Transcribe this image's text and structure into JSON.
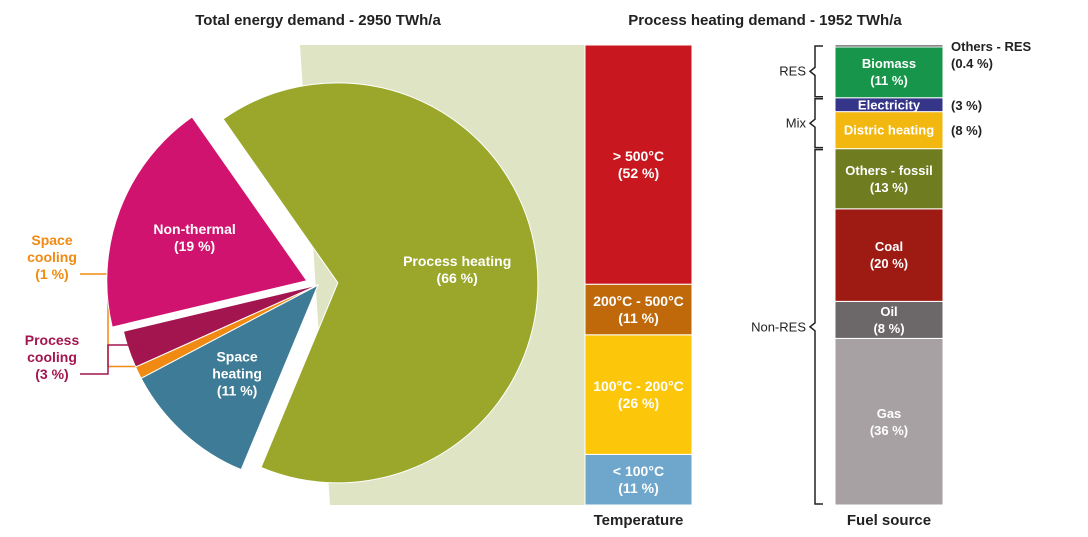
{
  "chart_data": [
    {
      "type": "pie",
      "title": "Total energy demand - 2950 TWh/a",
      "categories": [
        "Process heating",
        "Space heating",
        "Space cooling",
        "Process cooling",
        "Non-thermal"
      ],
      "values": [
        66,
        11,
        1,
        3,
        19
      ],
      "value_labels": [
        "(66 %)",
        "(11 %)",
        "(1 %)",
        "(3 %)",
        "(19 %)"
      ],
      "colors": [
        "#9aa72b",
        "#3e7b97",
        "#f08a12",
        "#a3154f",
        "#d0136f"
      ]
    },
    {
      "type": "stacked-bar",
      "title": "Process heating demand - 1952 TWh/a",
      "xlabel": "Temperature",
      "categories": [
        "< 100°C",
        "100°C - 200°C",
        "200°C - 500°C",
        "> 500°C"
      ],
      "values": [
        11,
        26,
        11,
        52
      ],
      "value_labels": [
        "(11 %)",
        "(26 %)",
        "(11 %)",
        "(52 %)"
      ],
      "colors": [
        "#6fa6cb",
        "#fcc60a",
        "#c0690a",
        "#c8171e"
      ]
    },
    {
      "type": "grouped-stack",
      "xlabel": "Fuel source",
      "groups": [
        {
          "name": "Non-RES",
          "categories": [
            "Gas",
            "Oil",
            "Coal",
            "Others - fossil"
          ],
          "values": [
            36,
            8,
            20,
            13
          ],
          "value_labels": [
            "(36 %)",
            "(8 %)",
            "(20 %)",
            "(13 %)"
          ],
          "colors": [
            "#a7a1a3",
            "#6c6768",
            "#9e1b14",
            "#6f7d20"
          ]
        },
        {
          "name": "Mix",
          "categories": [
            "Distric heating",
            "Electricity"
          ],
          "values": [
            8,
            3
          ],
          "value_labels": [
            "(8 %)",
            "(3 %)"
          ],
          "colors": [
            "#f2b80f",
            "#35358a"
          ]
        },
        {
          "name": "RES",
          "categories": [
            "Biomass",
            "Others - RES"
          ],
          "values": [
            11,
            0.4
          ],
          "value_labels": [
            "(11 %)",
            "(0.4 %)"
          ],
          "colors": [
            "#17954a",
            "#111111"
          ]
        }
      ]
    }
  ]
}
